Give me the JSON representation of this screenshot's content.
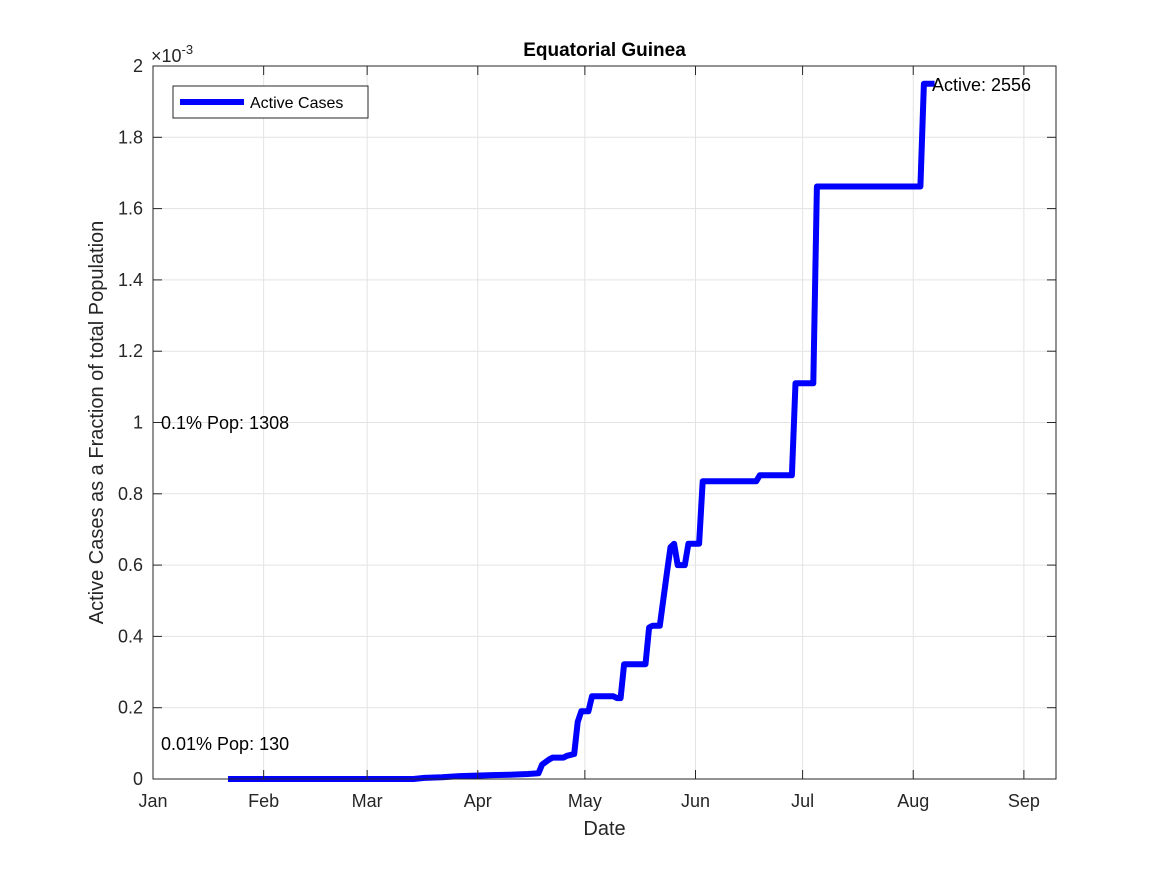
{
  "chart_data": {
    "type": "line",
    "title": "Equatorial Guinea",
    "xlabel": "Date",
    "ylabel": "Active Cases as a Fraction of total Population",
    "y_exponent_label": "×10",
    "y_exponent_power": "-3",
    "xlim": [
      "2020-01-01",
      "2020-09-10"
    ],
    "ylim": [
      0,
      0.002
    ],
    "grid": true,
    "legend_position": "top-left",
    "x_ticks": [
      {
        "date": "2020-01-01",
        "label": "Jan"
      },
      {
        "date": "2020-02-01",
        "label": "Feb"
      },
      {
        "date": "2020-03-01",
        "label": "Mar"
      },
      {
        "date": "2020-04-01",
        "label": "Apr"
      },
      {
        "date": "2020-05-01",
        "label": "May"
      },
      {
        "date": "2020-06-01",
        "label": "Jun"
      },
      {
        "date": "2020-07-01",
        "label": "Jul"
      },
      {
        "date": "2020-08-01",
        "label": "Aug"
      },
      {
        "date": "2020-09-01",
        "label": "Sep"
      }
    ],
    "y_ticks": [
      {
        "value": 0,
        "label": "0"
      },
      {
        "value": 0.0002,
        "label": "0.2"
      },
      {
        "value": 0.0004,
        "label": "0.4"
      },
      {
        "value": 0.0006,
        "label": "0.6"
      },
      {
        "value": 0.0008,
        "label": "0.8"
      },
      {
        "value": 0.001,
        "label": "1"
      },
      {
        "value": 0.0012,
        "label": "1.2"
      },
      {
        "value": 0.0014,
        "label": "1.4"
      },
      {
        "value": 0.0016,
        "label": "1.6"
      },
      {
        "value": 0.0018,
        "label": "1.8"
      },
      {
        "value": 0.002,
        "label": "2"
      }
    ],
    "series": [
      {
        "name": "Active Cases",
        "color": "#0000ff",
        "points": [
          [
            "2020-01-22",
            0
          ],
          [
            "2020-03-14",
            0
          ],
          [
            "2020-03-17",
            3e-06
          ],
          [
            "2020-03-22",
            5e-06
          ],
          [
            "2020-03-27",
            8e-06
          ],
          [
            "2020-04-05",
            1.1e-05
          ],
          [
            "2020-04-10",
            1.2e-05
          ],
          [
            "2020-04-15",
            1.4e-05
          ],
          [
            "2020-04-18",
            1.6e-05
          ],
          [
            "2020-04-19",
            4e-05
          ],
          [
            "2020-04-21",
            5.5e-05
          ],
          [
            "2020-04-22",
            6e-05
          ],
          [
            "2020-04-25",
            6e-05
          ],
          [
            "2020-04-26",
            6.5e-05
          ],
          [
            "2020-04-28",
            7e-05
          ],
          [
            "2020-04-29",
            0.00016
          ],
          [
            "2020-04-30",
            0.00019
          ],
          [
            "2020-05-02",
            0.00019
          ],
          [
            "2020-05-03",
            0.000232
          ],
          [
            "2020-05-09",
            0.000232
          ],
          [
            "2020-05-10",
            0.000227
          ],
          [
            "2020-05-11",
            0.000227
          ],
          [
            "2020-05-12",
            0.000322
          ],
          [
            "2020-05-18",
            0.000322
          ],
          [
            "2020-05-19",
            0.000425
          ],
          [
            "2020-05-20",
            0.00043
          ],
          [
            "2020-05-22",
            0.00043
          ],
          [
            "2020-05-24",
            0.00058
          ],
          [
            "2020-05-25",
            0.00065
          ],
          [
            "2020-05-26",
            0.00066
          ],
          [
            "2020-05-27",
            0.0006
          ],
          [
            "2020-05-29",
            0.0006
          ],
          [
            "2020-05-30",
            0.00066
          ],
          [
            "2020-06-02",
            0.00066
          ],
          [
            "2020-06-03",
            0.000835
          ],
          [
            "2020-06-18",
            0.000835
          ],
          [
            "2020-06-19",
            0.000852
          ],
          [
            "2020-06-28",
            0.000852
          ],
          [
            "2020-06-29",
            0.00111
          ],
          [
            "2020-07-04",
            0.00111
          ],
          [
            "2020-07-05",
            0.001662
          ],
          [
            "2020-08-03",
            0.001662
          ],
          [
            "2020-08-04",
            0.00195
          ],
          [
            "2020-08-07",
            0.00195
          ]
        ]
      }
    ],
    "annotations": [
      {
        "id": "active",
        "text": "Active: 2556"
      },
      {
        "id": "pop01",
        "text": "0.1% Pop: 1308"
      },
      {
        "id": "pop001",
        "text": "0.01% Pop: 130"
      }
    ]
  }
}
